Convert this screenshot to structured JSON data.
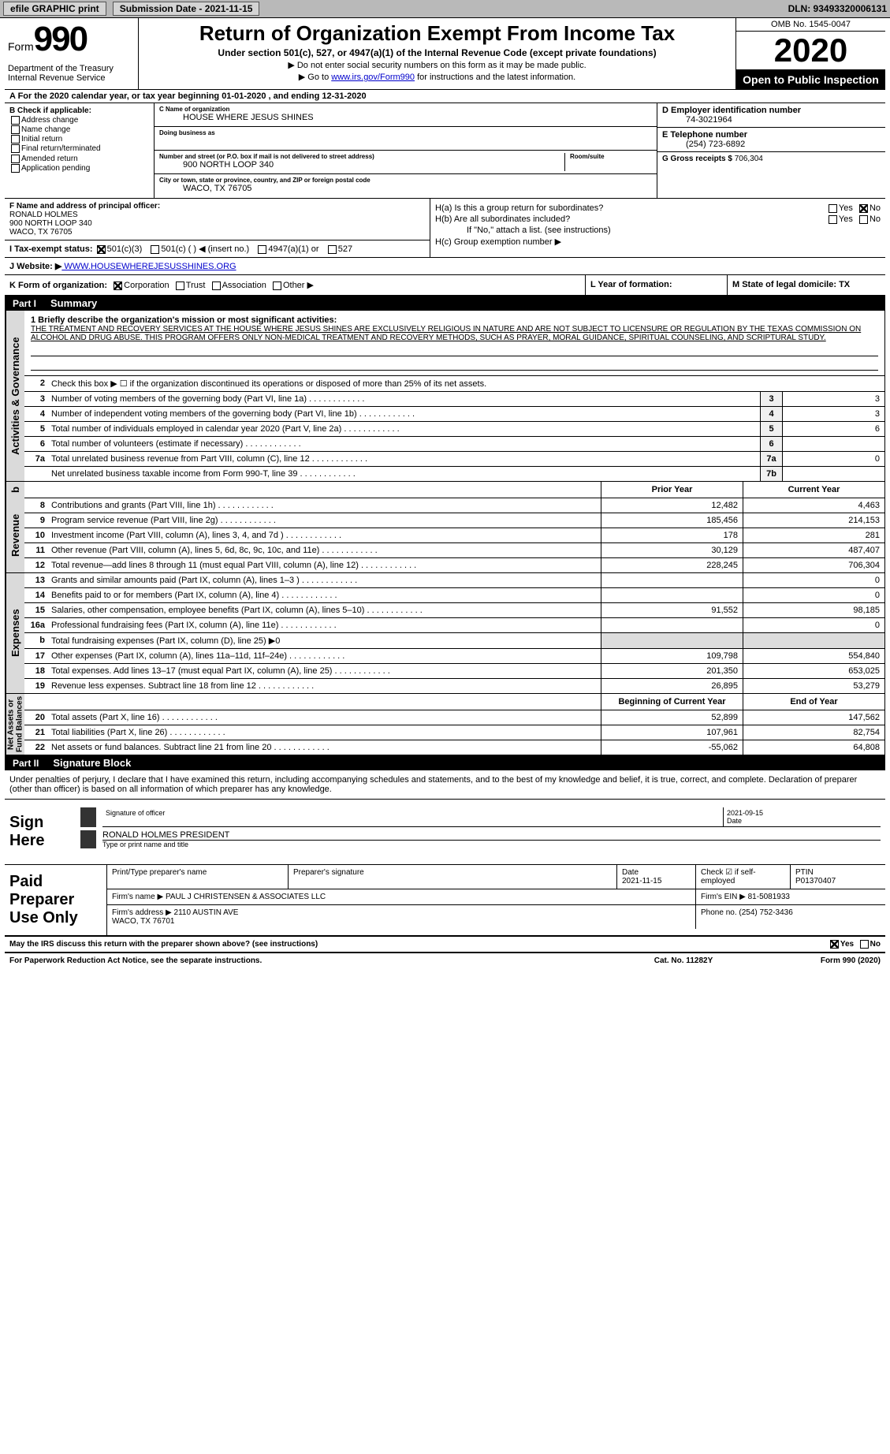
{
  "topbar": {
    "efile_label": "efile GRAPHIC print",
    "submission_label": "Submission Date - 2021-11-15",
    "dln_label": "DLN: 93493320006131"
  },
  "header": {
    "form_prefix": "Form",
    "form_number": "990",
    "title": "Return of Organization Exempt From Income Tax",
    "subtitle": "Under section 501(c), 527, or 4947(a)(1) of the Internal Revenue Code (except private foundations)",
    "note1": "▶ Do not enter social security numbers on this form as it may be made public.",
    "note2_pre": "▶ Go to ",
    "note2_link": "www.irs.gov/Form990",
    "note2_post": " for instructions and the latest information.",
    "dept": "Department of the Treasury\nInternal Revenue Service",
    "omb": "OMB No. 1545-0047",
    "year": "2020",
    "open": "Open to Public Inspection"
  },
  "A": "A For the 2020 calendar year, or tax year beginning 01-01-2020   , and ending 12-31-2020",
  "B": {
    "label": "B Check if applicable:",
    "opts": [
      "Address change",
      "Name change",
      "Initial return",
      "Final return/terminated",
      "Amended return",
      "Application pending"
    ],
    "checked": []
  },
  "C": {
    "name_label": "C Name of organization",
    "name": "HOUSE WHERE JESUS SHINES",
    "dba_label": "Doing business as",
    "dba": "",
    "street_label": "Number and street (or P.O. box if mail is not delivered to street address)",
    "room_label": "Room/suite",
    "street": "900 NORTH LOOP 340",
    "city_label": "City or town, state or province, country, and ZIP or foreign postal code",
    "city": "WACO, TX  76705"
  },
  "D": {
    "label": "D Employer identification number",
    "value": "74-3021964"
  },
  "E": {
    "label": "E Telephone number",
    "value": "(254) 723-6892"
  },
  "G": {
    "label": "G Gross receipts $",
    "value": "706,304"
  },
  "F": {
    "label": "F  Name and address of principal officer:",
    "name": "RONALD HOLMES",
    "street": "900 NORTH LOOP 340",
    "city": "WACO, TX  76705"
  },
  "H": {
    "a": "H(a)  Is this a group return for subordinates?",
    "b": "H(b)  Are all subordinates included?",
    "b_note": "If \"No,\" attach a list. (see instructions)",
    "c": "H(c)  Group exemption number ▶",
    "a_yes": false,
    "a_no": true
  },
  "I": {
    "label": "I   Tax-exempt status:",
    "501c3_checked": true,
    "opts": [
      "501(c)(3)",
      "501(c) (  ) ◀ (insert no.)",
      "4947(a)(1) or",
      "527"
    ]
  },
  "J": {
    "label": "J  Website: ▶",
    "value": " WWW.HOUSEWHEREJESUSSHINES.ORG"
  },
  "K": {
    "label": "K Form of organization:",
    "corp_checked": true,
    "opts": [
      "Corporation",
      "Trust",
      "Association",
      "Other ▶"
    ]
  },
  "L": {
    "label": "L Year of formation:",
    "value": ""
  },
  "M": {
    "label": "M State of legal domicile: TX"
  },
  "part1": {
    "num": "Part I",
    "title": "Summary",
    "mission_label": "1  Briefly describe the organization's mission or most significant activities:",
    "mission": "THE TREATMENT AND RECOVERY SERVICES AT THE HOUSE WHERE JESUS SHINES ARE EXCLUSIVELY RELIGIOUS IN NATURE AND ARE NOT SUBJECT TO LICENSURE OR REGULATION BY THE TEXAS COMMISSION ON ALCOHOL AND DRUG ABUSE. THIS PROGRAM OFFERS ONLY NON-MEDICAL TREATMENT AND RECOVERY METHODS, SUCH AS PRAYER, MORAL GUIDANCE, SPIRITUAL COUNSELING, AND SCRIPTURAL STUDY.",
    "line2": "Check this box ▶ ☐  if the organization discontinued its operations or disposed of more than 25% of its net assets.",
    "gov_lines": [
      {
        "n": "3",
        "t": "Number of voting members of the governing body (Part VI, line 1a)",
        "box": "3",
        "v": "3"
      },
      {
        "n": "4",
        "t": "Number of independent voting members of the governing body (Part VI, line 1b)",
        "box": "4",
        "v": "3"
      },
      {
        "n": "5",
        "t": "Total number of individuals employed in calendar year 2020 (Part V, line 2a)",
        "box": "5",
        "v": "6"
      },
      {
        "n": "6",
        "t": "Total number of volunteers (estimate if necessary)",
        "box": "6",
        "v": ""
      },
      {
        "n": "7a",
        "t": "Total unrelated business revenue from Part VIII, column (C), line 12",
        "box": "7a",
        "v": "0"
      },
      {
        "n": "",
        "t": "Net unrelated business taxable income from Form 990-T, line 39",
        "box": "7b",
        "v": ""
      }
    ],
    "col_hdr": {
      "prior": "Prior Year",
      "curr": "Current Year"
    },
    "revenue": [
      {
        "n": "8",
        "t": "Contributions and grants (Part VIII, line 1h)",
        "p": "12,482",
        "c": "4,463"
      },
      {
        "n": "9",
        "t": "Program service revenue (Part VIII, line 2g)",
        "p": "185,456",
        "c": "214,153"
      },
      {
        "n": "10",
        "t": "Investment income (Part VIII, column (A), lines 3, 4, and 7d )",
        "p": "178",
        "c": "281"
      },
      {
        "n": "11",
        "t": "Other revenue (Part VIII, column (A), lines 5, 6d, 8c, 9c, 10c, and 11e)",
        "p": "30,129",
        "c": "487,407"
      },
      {
        "n": "12",
        "t": "Total revenue—add lines 8 through 11 (must equal Part VIII, column (A), line 12)",
        "p": "228,245",
        "c": "706,304"
      }
    ],
    "expenses": [
      {
        "n": "13",
        "t": "Grants and similar amounts paid (Part IX, column (A), lines 1–3 )",
        "p": "",
        "c": "0"
      },
      {
        "n": "14",
        "t": "Benefits paid to or for members (Part IX, column (A), line 4)",
        "p": "",
        "c": "0"
      },
      {
        "n": "15",
        "t": "Salaries, other compensation, employee benefits (Part IX, column (A), lines 5–10)",
        "p": "91,552",
        "c": "98,185"
      },
      {
        "n": "16a",
        "t": "Professional fundraising fees (Part IX, column (A), line 11e)",
        "p": "",
        "c": "0"
      },
      {
        "n": "b",
        "t": "Total fundraising expenses (Part IX, column (D), line 25) ▶0",
        "p": "—",
        "c": "—"
      },
      {
        "n": "17",
        "t": "Other expenses (Part IX, column (A), lines 11a–11d, 11f–24e)",
        "p": "109,798",
        "c": "554,840"
      },
      {
        "n": "18",
        "t": "Total expenses. Add lines 13–17 (must equal Part IX, column (A), line 25)",
        "p": "201,350",
        "c": "653,025"
      },
      {
        "n": "19",
        "t": "Revenue less expenses. Subtract line 18 from line 12",
        "p": "26,895",
        "c": "53,279"
      }
    ],
    "net_hdr": {
      "prior": "Beginning of Current Year",
      "curr": "End of Year"
    },
    "net": [
      {
        "n": "20",
        "t": "Total assets (Part X, line 16)",
        "p": "52,899",
        "c": "147,562"
      },
      {
        "n": "21",
        "t": "Total liabilities (Part X, line 26)",
        "p": "107,961",
        "c": "82,754"
      },
      {
        "n": "22",
        "t": "Net assets or fund balances. Subtract line 21 from line 20",
        "p": "-55,062",
        "c": "64,808"
      }
    ],
    "side_labels": {
      "gov": "Activities & Governance",
      "rev": "Revenue",
      "exp": "Expenses",
      "net": "Net Assets or\nFund Balances"
    }
  },
  "part2": {
    "num": "Part II",
    "title": "Signature Block",
    "penalty": "Under penalties of perjury, I declare that I have examined this return, including accompanying schedules and statements, and to the best of my knowledge and belief, it is true, correct, and complete. Declaration of preparer (other than officer) is based on all information of which preparer has any knowledge.",
    "sign_here": "Sign Here",
    "sig_officer_lbl": "Signature of officer",
    "sig_date": "2021-09-15",
    "date_lbl": "Date",
    "officer_name": "RONALD HOLMES  PRESIDENT",
    "officer_name_lbl": "Type or print name and title",
    "paid": "Paid Preparer Use Only",
    "prep_name_lbl": "Print/Type preparer's name",
    "prep_sig_lbl": "Preparer's signature",
    "prep_date_lbl": "Date",
    "prep_date": "2021-11-15",
    "self_emp_lbl": "Check ☑ if self-employed",
    "ptin_lbl": "PTIN",
    "ptin": "P01370407",
    "firm_name_lbl": "Firm's name    ▶",
    "firm_name": "PAUL J CHRISTENSEN & ASSOCIATES LLC",
    "firm_ein_lbl": "Firm's EIN ▶",
    "firm_ein": "81-5081933",
    "firm_addr_lbl": "Firm's address ▶",
    "firm_addr": "2110 AUSTIN AVE\nWACO, TX  76701",
    "firm_phone_lbl": "Phone no.",
    "firm_phone": "(254) 752-3436",
    "discuss": "May the IRS discuss this return with the preparer shown above? (see instructions)",
    "discuss_yes": true
  },
  "footer": {
    "pra": "For Paperwork Reduction Act Notice, see the separate instructions.",
    "cat": "Cat. No. 11282Y",
    "form": "Form 990 (2020)"
  }
}
